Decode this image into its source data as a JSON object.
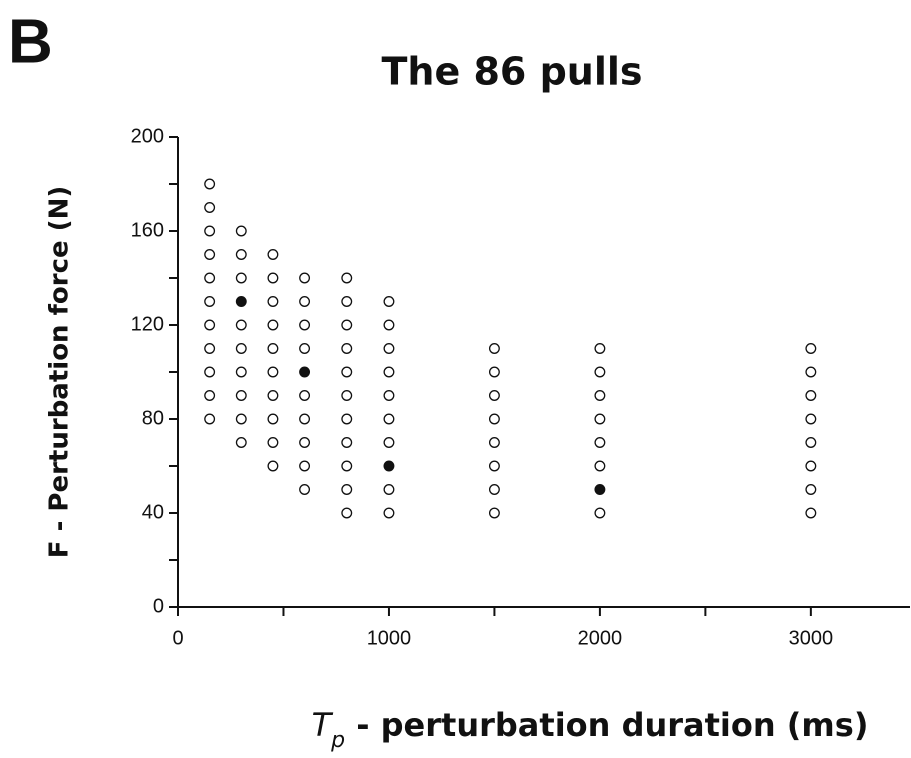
{
  "chart_data": {
    "type": "scatter",
    "panel_label": "B",
    "title": "The 86 pulls",
    "y_label": "F - Perturbation force (N)",
    "x_label": {
      "symbol": "T",
      "subscript": "p",
      "text": " - perturbation duration (ms)"
    },
    "xlim": [
      0,
      3470
    ],
    "xticks": [
      0,
      1000,
      2000,
      3000
    ],
    "xminorticks": [
      500,
      1500,
      2500
    ],
    "ylim": [
      0,
      200
    ],
    "yticks": [
      0,
      40,
      80,
      120,
      160,
      200
    ],
    "yminorticks": [
      20,
      60,
      100,
      140,
      180
    ],
    "series": [
      {
        "fill": "#ffffff",
        "color": "#111111",
        "x": [
          150,
          150,
          150,
          150,
          150,
          150,
          150,
          150,
          150,
          150,
          150,
          300,
          300,
          300,
          300,
          300,
          300,
          300,
          300,
          300,
          450,
          450,
          450,
          450,
          450,
          450,
          450,
          450,
          450,
          450,
          600,
          600,
          600,
          600,
          600,
          600,
          600,
          600,
          600,
          800,
          800,
          800,
          800,
          800,
          800,
          800,
          800,
          800,
          800,
          800,
          1000,
          1000,
          1000,
          1000,
          1000,
          1000,
          1000,
          1000,
          1000,
          1500,
          1500,
          1500,
          1500,
          1500,
          1500,
          1500,
          1500,
          2000,
          2000,
          2000,
          2000,
          2000,
          2000,
          2000,
          3000,
          3000,
          3000,
          3000,
          3000,
          3000,
          3000,
          3000
        ],
        "y": [
          80,
          90,
          100,
          110,
          120,
          130,
          140,
          150,
          160,
          170,
          180,
          70,
          80,
          90,
          100,
          110,
          120,
          140,
          150,
          160,
          60,
          70,
          80,
          90,
          100,
          110,
          120,
          130,
          140,
          150,
          50,
          60,
          70,
          80,
          90,
          110,
          120,
          130,
          140,
          40,
          50,
          60,
          70,
          80,
          90,
          100,
          110,
          120,
          130,
          140,
          40,
          50,
          70,
          80,
          90,
          100,
          110,
          120,
          130,
          40,
          50,
          60,
          70,
          80,
          90,
          100,
          110,
          40,
          60,
          70,
          80,
          90,
          100,
          110,
          40,
          50,
          60,
          70,
          80,
          90,
          100,
          110
        ]
      },
      {
        "fill": "#111111",
        "color": "#111111",
        "x": [
          300,
          600,
          1000,
          2000
        ],
        "y": [
          130,
          100,
          60,
          50
        ]
      }
    ]
  }
}
